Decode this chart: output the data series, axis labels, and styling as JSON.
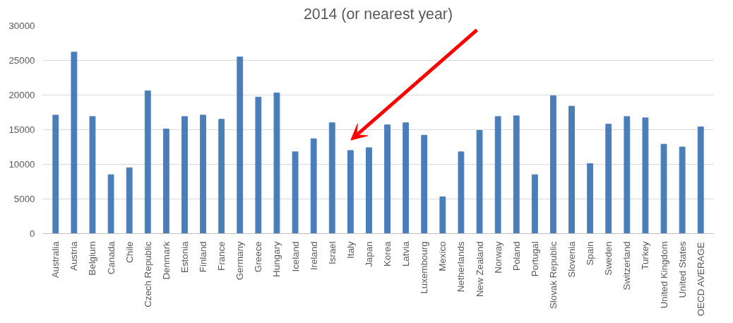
{
  "chart_data": {
    "type": "bar",
    "title": "2014 (or nearest year)",
    "categories": [
      "Australia",
      "Austria",
      "Belgium",
      "Canada",
      "Chile",
      "Czech Republic",
      "Denmark",
      "Estonia",
      "Finland",
      "France",
      "Germany",
      "Greece",
      "Hungary",
      "Iceland",
      "Ireland",
      "Israel",
      "Italy",
      "Japan",
      "Korea",
      "Latvia",
      "Luxembourg",
      "Mexico",
      "Netherlands",
      "New Zealand",
      "Norway",
      "Poland",
      "Portugal",
      "Slovak Republic",
      "Slovenia",
      "Spain",
      "Sweden",
      "Switzerland",
      "Turkey",
      "United Kingdom",
      "United States",
      "OECD AVERAGE"
    ],
    "values": [
      17100,
      26200,
      16900,
      8500,
      9500,
      20600,
      15100,
      16900,
      17100,
      16500,
      25500,
      19700,
      20300,
      11800,
      13700,
      16000,
      12000,
      12400,
      15700,
      16000,
      14200,
      5300,
      11800,
      14900,
      16900,
      17000,
      8500,
      19900,
      18400,
      10100,
      15800,
      16900,
      16700,
      12900,
      12500,
      15400
    ],
    "color": "#4a7ebb",
    "ylim": [
      0,
      30000
    ],
    "yticks": [
      0,
      5000,
      10000,
      15000,
      20000,
      25000,
      30000
    ],
    "grid": "y"
  }
}
